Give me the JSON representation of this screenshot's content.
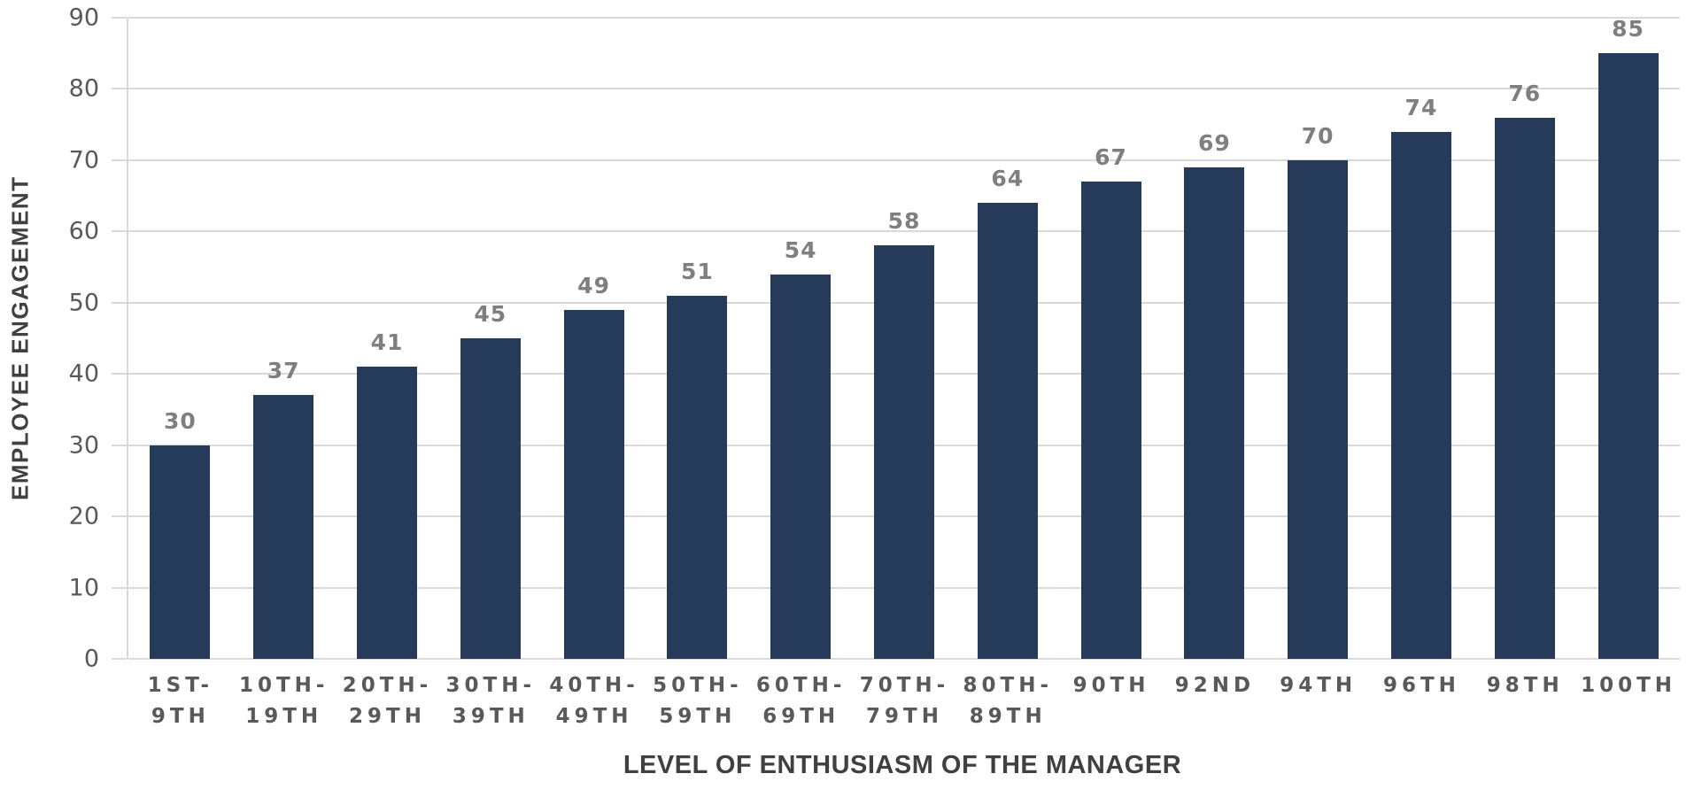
{
  "chart_data": {
    "type": "bar",
    "title": "",
    "xlabel": "LEVEL OF ENTHUSIASM OF THE MANAGER",
    "ylabel": "EMPLOYEE ENGAGEMENT",
    "categories": [
      "1ST-9TH",
      "10TH-19TH",
      "20TH-29TH",
      "30TH-39TH",
      "40TH-49TH",
      "50TH-59TH",
      "60TH-69TH",
      "70TH-79TH",
      "80TH-89TH",
      "90TH",
      "92ND",
      "94TH",
      "96TH",
      "98TH",
      "100TH"
    ],
    "values": [
      30,
      37,
      41,
      45,
      49,
      51,
      54,
      58,
      64,
      67,
      69,
      70,
      74,
      76,
      85
    ],
    "ylim": [
      0,
      90
    ],
    "yticks": [
      0,
      10,
      20,
      30,
      40,
      50,
      60,
      70,
      80,
      90
    ],
    "grid": true,
    "legend": false,
    "colors": {
      "bar": "#263B59",
      "gridline": "#D9D9D9",
      "axis_line": "#D9D9D9",
      "tick_label": "#595959",
      "data_label": "#7F7F7F",
      "axis_title": "#404040",
      "background": "#FFFFFF"
    }
  }
}
